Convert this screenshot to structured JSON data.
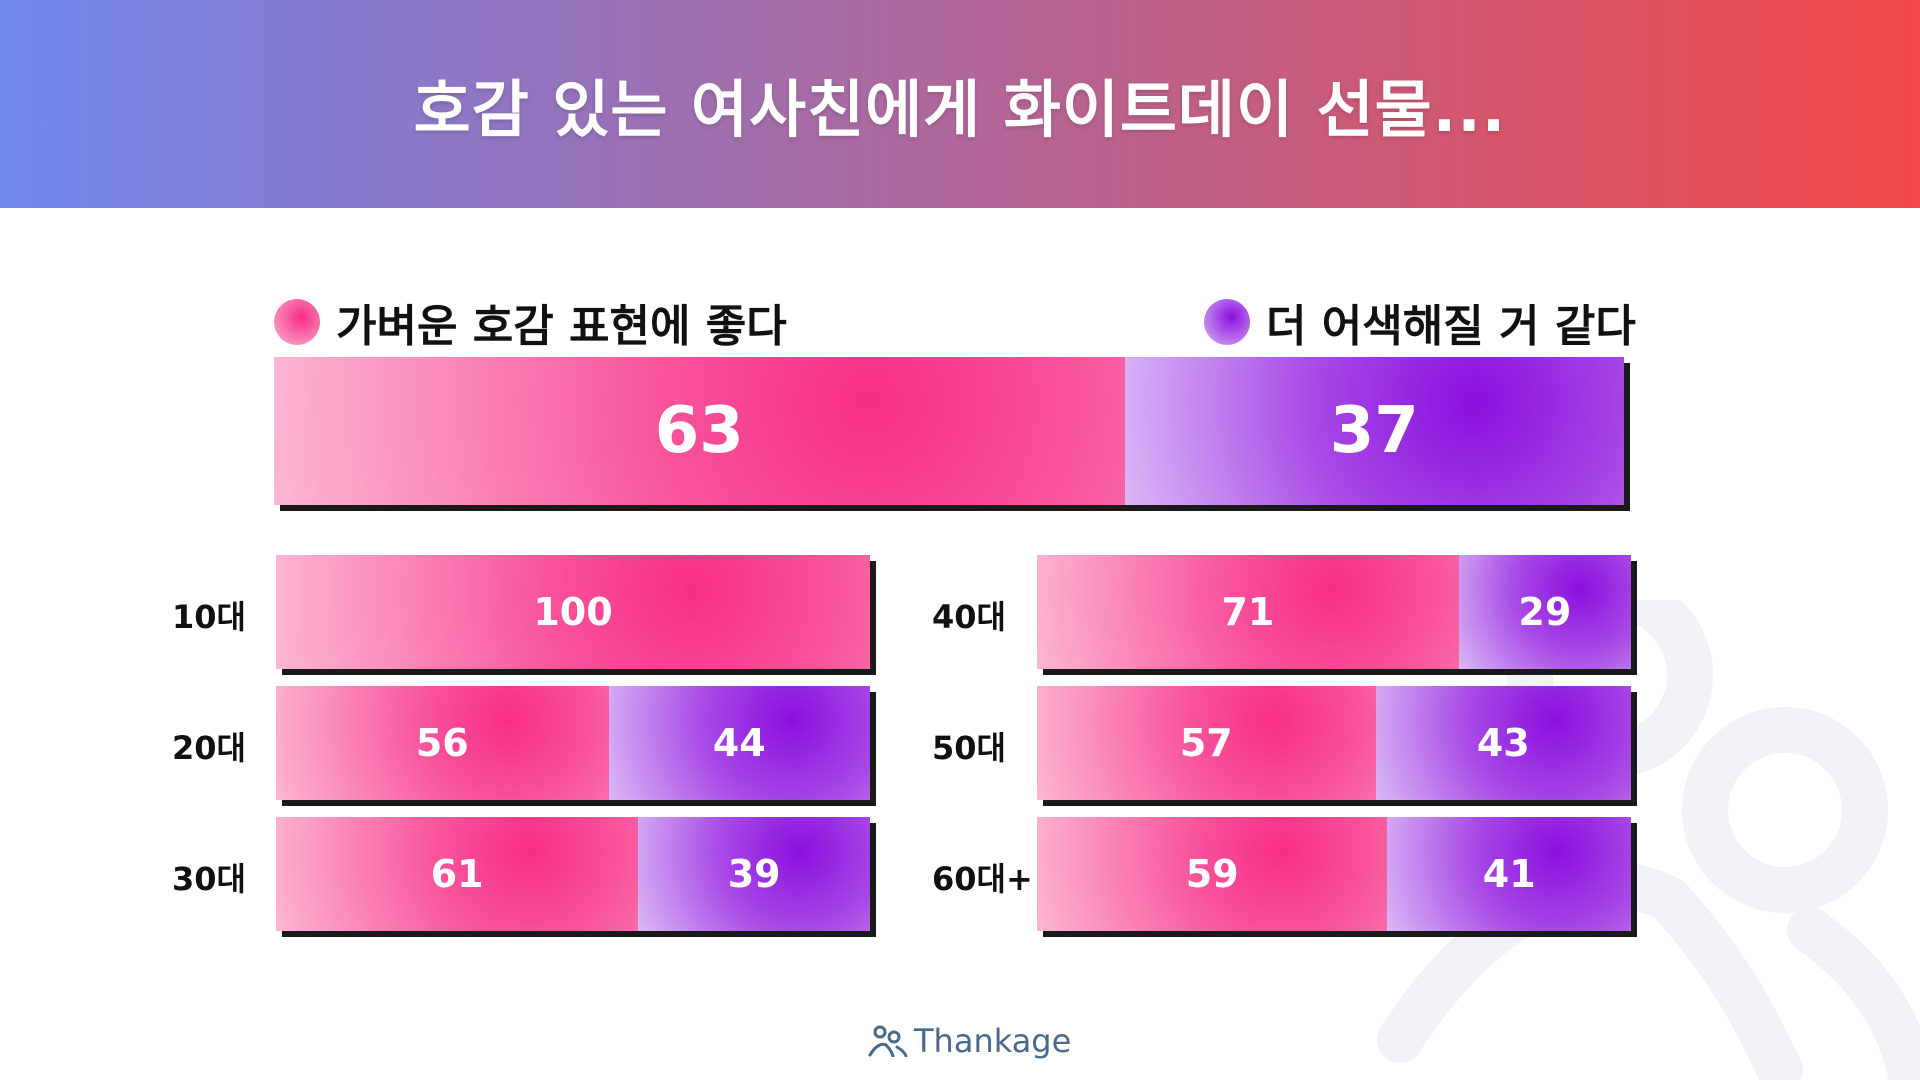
{
  "header": {
    "title": "호감 있는 여사친에게 화이트데이 선물..."
  },
  "colors": {
    "header_start": "#6f86ec",
    "header_end": "#f14848",
    "pink": "#f72d87",
    "purple": "#8b10de"
  },
  "legend": {
    "positive": "가벼운 호감 표현에 좋다",
    "negative": "더 어색해질 거 같다"
  },
  "brand": {
    "name": "Thankage",
    "icon": "people-logo-icon"
  },
  "chart_data": {
    "type": "bar",
    "stacked": true,
    "percent": true,
    "series_names": [
      "가벼운 호감 표현에 좋다",
      "더 어색해질 거 같다"
    ],
    "total": {
      "values": [
        63,
        37
      ]
    },
    "categories": [
      "10대",
      "20대",
      "30대",
      "40대",
      "50대",
      "60대+"
    ],
    "series": [
      {
        "name": "가벼운 호감 표현에 좋다",
        "values": [
          100,
          56,
          61,
          71,
          57,
          59
        ]
      },
      {
        "name": "더 어색해질 거 같다",
        "values": [
          0,
          44,
          39,
          29,
          43,
          41
        ]
      }
    ]
  }
}
